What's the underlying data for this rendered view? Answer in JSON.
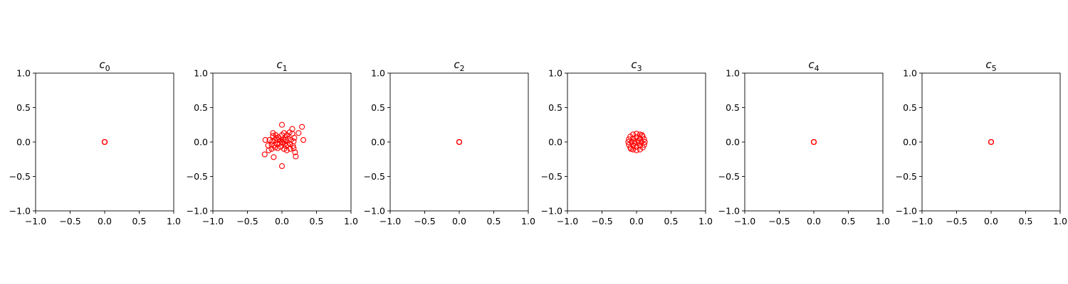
{
  "chart_data": [
    {
      "type": "scatter",
      "title_base": "c",
      "title_sub": "0",
      "xlim": [
        -1.0,
        1.0
      ],
      "ylim": [
        -1.0,
        1.0
      ],
      "xticks": [
        "−1.0",
        "−0.5",
        "0.0",
        "0.5",
        "1.0"
      ],
      "yticks": [
        "−1.0",
        "−0.5",
        "0.0",
        "0.5",
        "1.0"
      ],
      "grid": false,
      "marker_color": "#ff0000",
      "points": [
        [
          0.0,
          0.0
        ],
        [
          0.0,
          0.0
        ],
        [
          0.0,
          0.0
        ],
        [
          0.0,
          0.0
        ],
        [
          0.0,
          0.0
        ],
        [
          0.0,
          0.0
        ]
      ]
    },
    {
      "type": "scatter",
      "title_base": "c",
      "title_sub": "1",
      "xlim": [
        -1.0,
        1.0
      ],
      "ylim": [
        -1.0,
        1.0
      ],
      "xticks": [
        "−1.0",
        "−0.5",
        "0.0",
        "0.5",
        "1.0"
      ],
      "yticks": [
        "−1.0",
        "−0.5",
        "0.0",
        "0.5",
        "1.0"
      ],
      "grid": false,
      "marker_color": "#ff0000",
      "points": [
        [
          0.0,
          0.25
        ],
        [
          0.29,
          0.22
        ],
        [
          -0.0,
          -0.35
        ],
        [
          0.15,
          0.19
        ],
        [
          0.24,
          0.13
        ],
        [
          0.31,
          0.03
        ],
        [
          -0.13,
          0.13
        ],
        [
          -0.09,
          0.1
        ],
        [
          -0.05,
          0.07
        ],
        [
          0.0,
          0.1
        ],
        [
          0.03,
          0.13
        ],
        [
          0.07,
          0.1
        ],
        [
          0.11,
          0.14
        ],
        [
          0.15,
          0.12
        ],
        [
          0.18,
          0.06
        ],
        [
          -0.24,
          0.03
        ],
        [
          -0.18,
          0.03
        ],
        [
          -0.14,
          0.01
        ],
        [
          -0.1,
          0.03
        ],
        [
          -0.06,
          0.03
        ],
        [
          -0.02,
          0.02
        ],
        [
          0.02,
          0.04
        ],
        [
          0.05,
          0.03
        ],
        [
          0.09,
          0.05
        ],
        [
          0.13,
          0.03
        ],
        [
          0.17,
          0.01
        ],
        [
          -0.2,
          -0.05
        ],
        [
          -0.15,
          -0.04
        ],
        [
          -0.11,
          -0.05
        ],
        [
          -0.07,
          -0.03
        ],
        [
          -0.03,
          -0.02
        ],
        [
          0.01,
          -0.01
        ],
        [
          0.04,
          -0.03
        ],
        [
          0.08,
          -0.04
        ],
        [
          0.12,
          -0.03
        ],
        [
          0.16,
          -0.06
        ],
        [
          -0.25,
          -0.18
        ],
        [
          -0.19,
          -0.12
        ],
        [
          -0.15,
          -0.1
        ],
        [
          -0.1,
          -0.08
        ],
        [
          -0.06,
          -0.09
        ],
        [
          -0.02,
          -0.07
        ],
        [
          0.03,
          -0.1
        ],
        [
          0.07,
          -0.12
        ],
        [
          0.12,
          -0.1
        ],
        [
          0.17,
          -0.09
        ],
        [
          0.19,
          -0.15
        ],
        [
          -0.12,
          -0.22
        ],
        [
          0.2,
          -0.21
        ],
        [
          -0.13,
          0.09
        ],
        [
          0.0,
          0.0
        ],
        [
          0.05,
          0.07
        ],
        [
          -0.08,
          0.06
        ],
        [
          0.06,
          -0.06
        ]
      ]
    },
    {
      "type": "scatter",
      "title_base": "c",
      "title_sub": "2",
      "xlim": [
        -1.0,
        1.0
      ],
      "ylim": [
        -1.0,
        1.0
      ],
      "xticks": [
        "−1.0",
        "−0.5",
        "0.0",
        "0.5",
        "1.0"
      ],
      "yticks": [
        "−1.0",
        "−0.5",
        "0.0",
        "0.5",
        "1.0"
      ],
      "grid": false,
      "marker_color": "#ff0000",
      "points": [
        [
          0.0,
          0.0
        ],
        [
          0.0,
          0.0
        ],
        [
          0.0,
          0.0
        ],
        [
          0.0,
          0.0
        ],
        [
          0.0,
          0.0
        ],
        [
          0.0,
          0.0
        ]
      ]
    },
    {
      "type": "scatter",
      "title_base": "c",
      "title_sub": "3",
      "xlim": [
        -1.0,
        1.0
      ],
      "ylim": [
        -1.0,
        1.0
      ],
      "xticks": [
        "−1.0",
        "−0.5",
        "0.0",
        "0.5",
        "1.0"
      ],
      "yticks": [
        "−1.0",
        "−0.5",
        "0.0",
        "0.5",
        "1.0"
      ],
      "grid": false,
      "marker_color": "#ff0000",
      "points": [
        [
          0.0,
          0.12
        ],
        [
          0.05,
          0.11
        ],
        [
          0.09,
          0.08
        ],
        [
          0.11,
          0.04
        ],
        [
          0.12,
          0.0
        ],
        [
          0.11,
          -0.04
        ],
        [
          0.09,
          -0.08
        ],
        [
          0.05,
          -0.11
        ],
        [
          0.0,
          -0.12
        ],
        [
          -0.05,
          -0.11
        ],
        [
          -0.09,
          -0.08
        ],
        [
          -0.11,
          -0.04
        ],
        [
          -0.12,
          0.0
        ],
        [
          -0.11,
          0.04
        ],
        [
          -0.09,
          0.08
        ],
        [
          -0.05,
          0.11
        ],
        [
          0.0,
          0.07
        ],
        [
          0.05,
          0.05
        ],
        [
          0.07,
          0.0
        ],
        [
          0.05,
          -0.05
        ],
        [
          0.0,
          -0.07
        ],
        [
          -0.05,
          -0.05
        ],
        [
          -0.07,
          0.0
        ],
        [
          -0.05,
          0.05
        ],
        [
          0.02,
          0.02
        ],
        [
          -0.02,
          -0.02
        ],
        [
          0.03,
          -0.01
        ],
        [
          -0.03,
          0.01
        ],
        [
          0.08,
          0.1
        ],
        [
          -0.08,
          -0.1
        ]
      ]
    },
    {
      "type": "scatter",
      "title_base": "c",
      "title_sub": "4",
      "xlim": [
        -1.0,
        1.0
      ],
      "ylim": [
        -1.0,
        1.0
      ],
      "xticks": [
        "−1.0",
        "−0.5",
        "0.0",
        "0.5",
        "1.0"
      ],
      "yticks": [
        "−1.0",
        "−0.5",
        "0.0",
        "0.5",
        "1.0"
      ],
      "grid": false,
      "marker_color": "#ff0000",
      "points": [
        [
          0.0,
          0.0
        ],
        [
          0.0,
          0.0
        ],
        [
          0.0,
          0.0
        ],
        [
          0.0,
          0.0
        ],
        [
          0.0,
          0.0
        ],
        [
          0.0,
          0.0
        ]
      ]
    },
    {
      "type": "scatter",
      "title_base": "c",
      "title_sub": "5",
      "xlim": [
        -1.0,
        1.0
      ],
      "ylim": [
        -1.0,
        1.0
      ],
      "xticks": [
        "−1.0",
        "−0.5",
        "0.0",
        "0.5",
        "1.0"
      ],
      "yticks": [
        "−1.0",
        "−0.5",
        "0.0",
        "0.5",
        "1.0"
      ],
      "grid": false,
      "marker_color": "#ff0000",
      "points": [
        [
          0.0,
          0.0
        ],
        [
          0.0,
          0.0
        ],
        [
          0.0,
          0.0
        ],
        [
          0.0,
          0.0
        ],
        [
          0.0,
          0.0
        ],
        [
          0.0,
          0.0
        ]
      ]
    }
  ]
}
